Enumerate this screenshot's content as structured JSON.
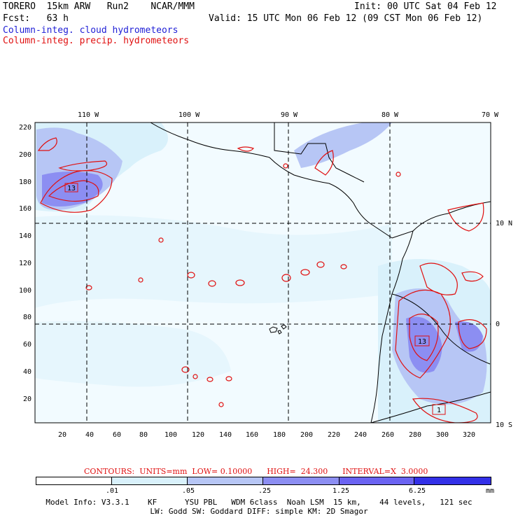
{
  "header": {
    "model": "TORERO  15km ARW   Run2    NCAR/MMM",
    "init": "Init: 00 UTC Sat 04 Feb 12",
    "fcst": "Fcst:   63 h",
    "valid": "Valid: 15 UTC Mon 06 Feb 12 (09 CST Mon 06 Feb 12)",
    "field1": "Column-integ. cloud hydrometeors",
    "field2": "Column-integ. precip. hydrometeors"
  },
  "map": {
    "lon_labels": [
      "110 W",
      "100 W",
      "90 W",
      "80 W",
      "70 W"
    ],
    "lat_labels": [
      "10 N",
      "0",
      "10 S"
    ],
    "y_ticks": [
      "220",
      "200",
      "180",
      "160",
      "140",
      "120",
      "100",
      "80",
      "60",
      "40",
      "20"
    ],
    "x_ticks": [
      "20",
      "40",
      "60",
      "80",
      "100",
      "120",
      "140",
      "160",
      "180",
      "200",
      "220",
      "240",
      "260",
      "280",
      "300",
      "320"
    ],
    "max_labels": [
      "13",
      "13",
      "1"
    ]
  },
  "contours": {
    "text": "CONTOURS:  UNITS=mm  LOW= 0.10000      HIGH=  24.300      INTERVAL=X  3.0000"
  },
  "colorbar": {
    "labels": [
      ".01",
      ".05",
      ".25",
      "1.25",
      "6.25",
      "mm"
    ],
    "colors": [
      "#ffffff",
      "#d9f1fb",
      "#b7c6f5",
      "#8c8ef2",
      "#6b63f2",
      "#3330e8"
    ]
  },
  "footer": {
    "line1": "Model Info: V3.3.1    KF      YSU PBL   WDM 6class  Noah LSM  15 km,    44 levels,   121 sec",
    "line2": "LW: Godd SW: Goddard DIFF: simple KM: 2D Smagor"
  }
}
